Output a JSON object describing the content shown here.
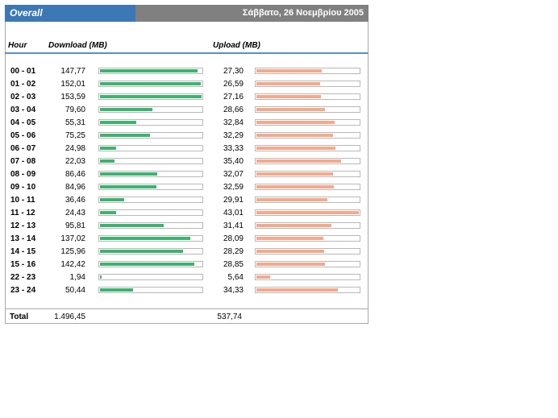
{
  "header": {
    "title": "Overall",
    "date": "Σάββατο, 26 Νοεμβρίου 2005"
  },
  "columns": {
    "hour": "Hour",
    "download": "Download (MB)",
    "upload": "Upload (MB)"
  },
  "colors": {
    "download_bar": "#3cb371",
    "upload_bar": "#f4a98b",
    "title_blue": "#3c78b5",
    "title_gray": "#808080"
  },
  "chart_data": {
    "type": "bar",
    "categories": [
      "00 - 01",
      "01 - 02",
      "02 - 03",
      "03 - 04",
      "04 - 05",
      "05 - 06",
      "06 - 07",
      "07 - 08",
      "08 - 09",
      "09 - 10",
      "10 - 11",
      "11 - 12",
      "12 - 13",
      "13 - 14",
      "14 - 15",
      "15 - 16",
      "22 - 23",
      "23 - 24"
    ],
    "series": [
      {
        "name": "Download (MB)",
        "values": [
          147.77,
          152.01,
          153.59,
          79.6,
          55.31,
          75.25,
          24.98,
          22.03,
          86.46,
          84.96,
          36.46,
          24.43,
          95.81,
          137.02,
          125.96,
          142.42,
          1.94,
          50.44
        ]
      },
      {
        "name": "Upload (MB)",
        "values": [
          27.3,
          26.59,
          27.16,
          28.66,
          32.84,
          32.29,
          33.33,
          35.4,
          32.07,
          32.59,
          29.91,
          43.01,
          31.41,
          28.09,
          28.29,
          28.85,
          5.64,
          34.33
        ]
      }
    ]
  },
  "rows": [
    {
      "hour": "00 - 01",
      "download": "147,77",
      "upload": "27,30"
    },
    {
      "hour": "01 - 02",
      "download": "152,01",
      "upload": "26,59"
    },
    {
      "hour": "02 - 03",
      "download": "153,59",
      "upload": "27,16"
    },
    {
      "hour": "03 - 04",
      "download": "79,60",
      "upload": "28,66"
    },
    {
      "hour": "04 - 05",
      "download": "55,31",
      "upload": "32,84"
    },
    {
      "hour": "05 - 06",
      "download": "75,25",
      "upload": "32,29"
    },
    {
      "hour": "06 - 07",
      "download": "24,98",
      "upload": "33,33"
    },
    {
      "hour": "07 - 08",
      "download": "22,03",
      "upload": "35,40"
    },
    {
      "hour": "08 - 09",
      "download": "86,46",
      "upload": "32,07"
    },
    {
      "hour": "09 - 10",
      "download": "84,96",
      "upload": "32,59"
    },
    {
      "hour": "10 - 11",
      "download": "36,46",
      "upload": "29,91"
    },
    {
      "hour": "11 - 12",
      "download": "24,43",
      "upload": "43,01"
    },
    {
      "hour": "12 - 13",
      "download": "95,81",
      "upload": "31,41"
    },
    {
      "hour": "13 - 14",
      "download": "137,02",
      "upload": "28,09"
    },
    {
      "hour": "14 - 15",
      "download": "125,96",
      "upload": "28,29"
    },
    {
      "hour": "15 - 16",
      "download": "142,42",
      "upload": "28,85"
    },
    {
      "hour": "22 - 23",
      "download": "1,94",
      "upload": "5,64"
    },
    {
      "hour": "23 - 24",
      "download": "50,44",
      "upload": "34,33"
    }
  ],
  "total": {
    "label": "Total",
    "download": "1.496,45",
    "upload": "537,74"
  }
}
